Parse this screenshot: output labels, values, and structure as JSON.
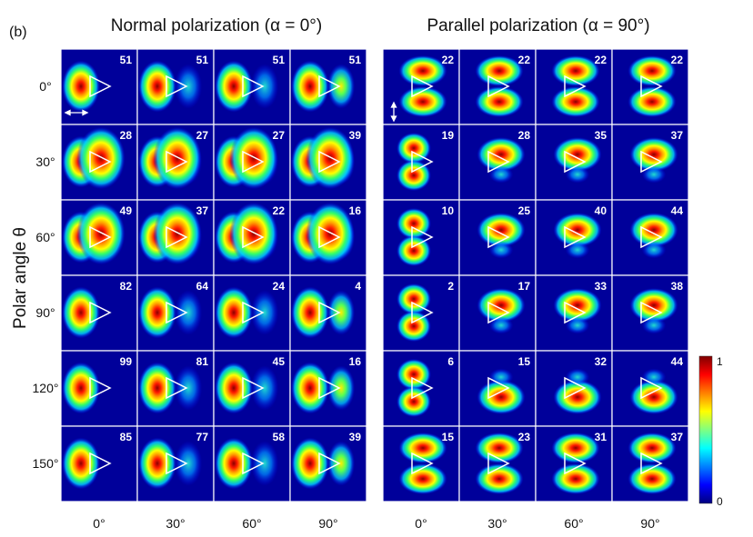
{
  "panel_label": "(b)",
  "y_axis_label": "Polar angle θ",
  "row_labels": [
    "0°",
    "30°",
    "60°",
    "90°",
    "120°",
    "150°"
  ],
  "col_labels": [
    "0°",
    "30°",
    "60°",
    "90°"
  ],
  "colorbar": {
    "max_label": "1",
    "min_label": "0",
    "stops": [
      "#00007f",
      "#0000ff",
      "#0080ff",
      "#00ffff",
      "#80ff80",
      "#ffff00",
      "#ff8000",
      "#ff0000",
      "#7f0000"
    ]
  },
  "arrows": {
    "normal": "horizontal-double-arrow-icon",
    "parallel": "vertical-double-arrow-icon"
  },
  "panels": [
    {
      "title": "Normal polarization (α = 0°)",
      "values": [
        [
          51,
          51,
          51,
          51
        ],
        [
          28,
          27,
          27,
          39
        ],
        [
          49,
          37,
          22,
          16
        ],
        [
          82,
          64,
          24,
          4
        ],
        [
          99,
          81,
          45,
          16
        ],
        [
          85,
          77,
          58,
          39
        ]
      ]
    },
    {
      "title": "Parallel polarization (α = 90°)",
      "values": [
        [
          22,
          22,
          22,
          22
        ],
        [
          19,
          28,
          35,
          37
        ],
        [
          10,
          25,
          40,
          44
        ],
        [
          2,
          17,
          33,
          38
        ],
        [
          6,
          15,
          32,
          44
        ],
        [
          15,
          23,
          31,
          37
        ]
      ]
    }
  ]
}
